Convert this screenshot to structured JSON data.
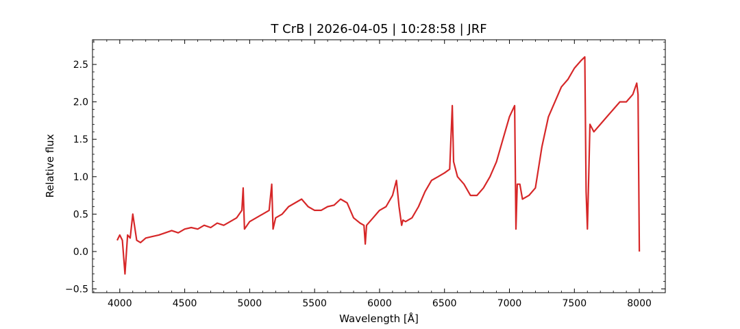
{
  "chart_data": {
    "type": "line",
    "title": "T CrB | 2026-04-05 | 10:28:58 | JRF",
    "xlabel": "Wavelength [Å]",
    "ylabel": "Relative flux",
    "xlim": [
      3790,
      8200
    ],
    "ylim": [
      -0.55,
      2.83
    ],
    "x_ticks": [
      4000,
      4500,
      5000,
      5500,
      6000,
      6500,
      7000,
      7500,
      8000
    ],
    "y_ticks": [
      -0.5,
      0.0,
      0.5,
      1.0,
      1.5,
      2.0,
      2.5
    ],
    "x_tick_labels": [
      "4000",
      "4500",
      "5000",
      "5500",
      "6000",
      "6500",
      "7000",
      "7500",
      "8000"
    ],
    "y_tick_labels": [
      "−0.5",
      "0.0",
      "0.5",
      "1.0",
      "1.5",
      "2.0",
      "2.5"
    ],
    "grid": false,
    "line_color": "#d62728",
    "series": [
      {
        "x": [
          3980,
          4000,
          4020,
          4040,
          4060,
          4080,
          4100,
          4130,
          4160,
          4200,
          4250,
          4300,
          4350,
          4400,
          4450,
          4500,
          4550,
          4600,
          4650,
          4700,
          4750,
          4800,
          4850,
          4900,
          4940,
          4950,
          4960,
          4980,
          5000,
          5050,
          5100,
          5150,
          5170,
          5180,
          5200,
          5250,
          5300,
          5350,
          5400,
          5450,
          5500,
          5550,
          5600,
          5650,
          5700,
          5750,
          5800,
          5850,
          5880,
          5890,
          5900,
          5950,
          6000,
          6050,
          6100,
          6130,
          6150,
          6170,
          6180,
          6200,
          6250,
          6300,
          6350,
          6400,
          6450,
          6500,
          6540,
          6560,
          6570,
          6600,
          6650,
          6700,
          6750,
          6800,
          6850,
          6900,
          6950,
          7000,
          7040,
          7050,
          7060,
          7080,
          7100,
          7150,
          7200,
          7250,
          7300,
          7350,
          7400,
          7450,
          7500,
          7550,
          7580,
          7590,
          7600,
          7610,
          7620,
          7650,
          7700,
          7750,
          7800,
          7850,
          7900,
          7950,
          7980,
          7990,
          8000
        ],
        "y": [
          0.15,
          0.22,
          0.15,
          -0.3,
          0.22,
          0.18,
          0.5,
          0.15,
          0.12,
          0.18,
          0.2,
          0.22,
          0.25,
          0.28,
          0.25,
          0.3,
          0.32,
          0.3,
          0.35,
          0.32,
          0.38,
          0.35,
          0.4,
          0.45,
          0.55,
          0.85,
          0.3,
          0.35,
          0.4,
          0.45,
          0.5,
          0.55,
          0.9,
          0.3,
          0.45,
          0.5,
          0.6,
          0.65,
          0.7,
          0.6,
          0.55,
          0.55,
          0.6,
          0.62,
          0.7,
          0.65,
          0.45,
          0.38,
          0.35,
          0.1,
          0.35,
          0.45,
          0.55,
          0.6,
          0.75,
          0.95,
          0.6,
          0.35,
          0.42,
          0.4,
          0.45,
          0.6,
          0.8,
          0.95,
          1.0,
          1.05,
          1.1,
          1.95,
          1.2,
          1.0,
          0.9,
          0.75,
          0.75,
          0.85,
          1.0,
          1.2,
          1.5,
          1.8,
          1.95,
          0.3,
          0.9,
          0.9,
          0.7,
          0.75,
          0.85,
          1.4,
          1.8,
          2.0,
          2.2,
          2.3,
          2.45,
          2.55,
          2.6,
          0.8,
          0.3,
          1.0,
          1.7,
          1.6,
          1.7,
          1.8,
          1.9,
          2.0,
          2.0,
          2.1,
          2.25,
          2.1,
          0.0
        ]
      }
    ]
  }
}
